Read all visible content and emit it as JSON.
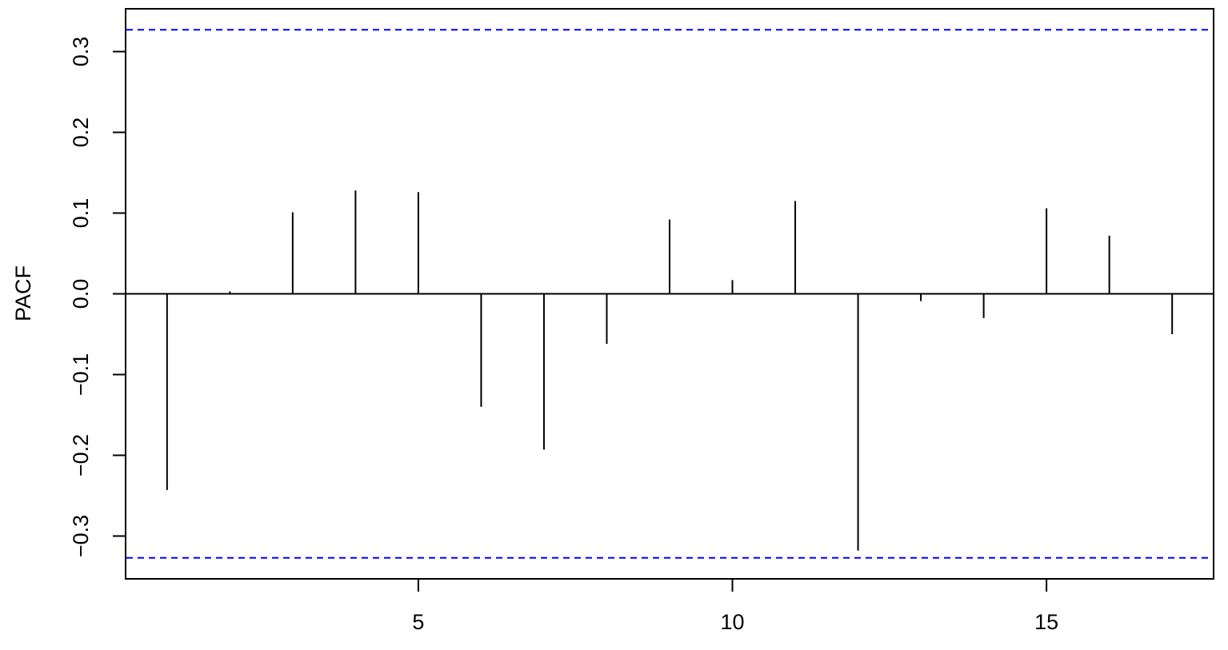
{
  "chart_data": {
    "type": "bar",
    "title": "",
    "xlabel": "",
    "ylabel": "PACF",
    "x": [
      1,
      2,
      3,
      4,
      5,
      6,
      7,
      8,
      9,
      10,
      11,
      12,
      13,
      14,
      15,
      16,
      17
    ],
    "values": [
      -0.243,
      0.003,
      0.101,
      0.128,
      0.126,
      -0.14,
      -0.193,
      -0.062,
      0.092,
      0.017,
      0.115,
      -0.318,
      -0.009,
      -0.03,
      0.106,
      0.072,
      -0.05
    ],
    "xlim": [
      0.34,
      17.66
    ],
    "ylim": [
      -0.353,
      0.353
    ],
    "x_ticks": [
      5,
      10,
      15
    ],
    "x_tick_labels": [
      "5",
      "10",
      "15"
    ],
    "y_ticks": [
      -0.3,
      -0.2,
      -0.1,
      0.0,
      0.1,
      0.2,
      0.3
    ],
    "y_tick_labels": [
      "−0.3",
      "−0.2",
      "−0.1",
      "0.0",
      "0.1",
      "0.2",
      "0.3"
    ],
    "confidence_bound": 0.327,
    "colors": {
      "bars": "#000000",
      "zero_line": "#000000",
      "confidence_lines": "#0000ff",
      "frame": "#000000"
    },
    "grid": false,
    "legend": "none"
  }
}
